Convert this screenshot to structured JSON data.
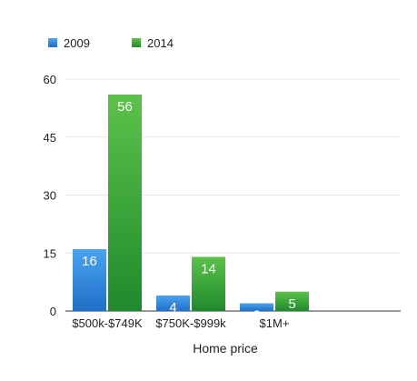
{
  "chart_data": {
    "type": "bar",
    "title": "",
    "xlabel": "Home price",
    "ylabel": "",
    "categories": [
      "$500k-$749K",
      "$750K-$999k",
      "$1M+"
    ],
    "series": [
      {
        "name": "2009",
        "values": [
          16,
          4,
          2
        ],
        "color": "#2d7fd6"
      },
      {
        "name": "2014",
        "values": [
          56,
          14,
          5
        ],
        "color": "#2e9a35"
      }
    ],
    "ylim": [
      0,
      60
    ],
    "yticks": [
      0,
      15,
      30,
      45,
      60
    ],
    "grid": true,
    "legend": "top-left",
    "data_labels": true
  }
}
